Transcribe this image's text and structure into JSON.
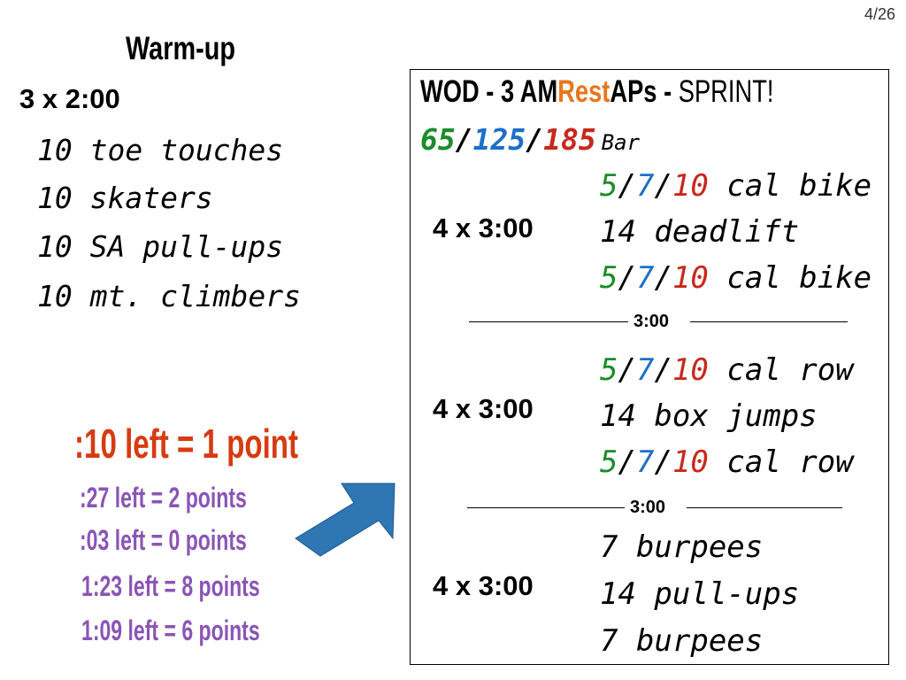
{
  "page_number": "4/26",
  "colors": {
    "green": "#1a8c2a",
    "blue": "#1e6fc7",
    "red": "#c8281c",
    "orange": "#e8761c",
    "purple": "#8a55b5",
    "arrow": "#2e76b4"
  },
  "warmup": {
    "title": "Warm-up",
    "rounds": "3 x 2:00",
    "exercises": [
      "10 toe touches",
      "10 skaters",
      "10 SA pull-ups",
      "10 mt. climbers"
    ]
  },
  "wod": {
    "title_prefix": "WOD - 3 AM",
    "title_highlight": "Rest",
    "title_suffix": "APs - ",
    "title_sprint": "SPRINT!",
    "bar": {
      "w1": "65",
      "w2": "125",
      "w3": "185",
      "sep": "/",
      "label": "Bar"
    },
    "blocks": [
      {
        "rounds": "4 x 3:00",
        "lines": [
          {
            "a": "5",
            "b": "7",
            "c": "10",
            "text": " cal bike"
          },
          {
            "text": "14 deadlift"
          },
          {
            "a": "5",
            "b": "7",
            "c": "10",
            "text": " cal bike"
          }
        ]
      },
      {
        "rest": "3:00"
      },
      {
        "rounds": "4 x 3:00",
        "lines": [
          {
            "a": "5",
            "b": "7",
            "c": "10",
            "text": " cal row"
          },
          {
            "text": "14 box jumps"
          },
          {
            "a": "5",
            "b": "7",
            "c": "10",
            "text": " cal row"
          }
        ]
      },
      {
        "rest": "3:00"
      },
      {
        "rounds": "4 x 3:00",
        "lines": [
          {
            "text": "7 burpees"
          },
          {
            "text": "14 pull-ups"
          },
          {
            "text": "7 burpees"
          }
        ]
      }
    ]
  },
  "scoring": {
    "rule": ":10 left = 1 point",
    "examples": [
      ":27 left = 2 points",
      ":03 left = 0 points",
      "1:23 left = 8 points",
      "1:09 left = 6 points"
    ]
  }
}
